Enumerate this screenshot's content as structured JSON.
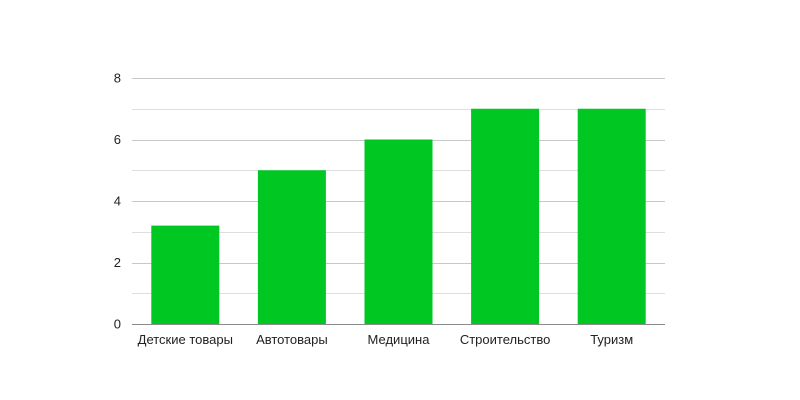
{
  "chart_data": {
    "type": "bar",
    "title": "",
    "xlabel": "",
    "ylabel": "",
    "categories": [
      "Детские товары",
      "Автотовары",
      "Медицина",
      "Строительство",
      "Туризм"
    ],
    "values": [
      3.2,
      5,
      6,
      7,
      7
    ],
    "ylim": [
      0,
      8
    ],
    "yticks": [
      0,
      2,
      4,
      6,
      8
    ],
    "y_minor_step": 1,
    "grid": true,
    "legend": "none",
    "colors": {
      "bar": "#00c722",
      "grid_major": "#c8c8c8",
      "grid_minor": "#dedede",
      "axis": "#8a8a8a",
      "text": "#222222"
    }
  }
}
